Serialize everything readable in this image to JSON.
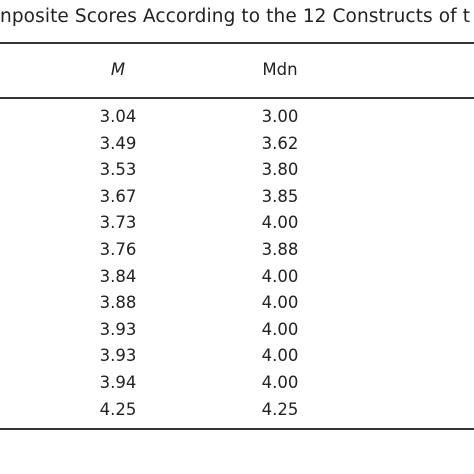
{
  "title": "nposite Scores According to the 12 Constructs of t",
  "table": {
    "header": [
      "M",
      "Mdn"
    ],
    "rows": [
      [
        "3.04",
        "3.00"
      ],
      [
        "3.49",
        "3.62"
      ],
      [
        "3.53",
        "3.80"
      ],
      [
        "3.67",
        "3.85"
      ],
      [
        "3.73",
        "4.00"
      ],
      [
        "3.76",
        "3.88"
      ],
      [
        "3.84",
        "4.00"
      ],
      [
        "3.88",
        "4.00"
      ],
      [
        "3.93",
        "4.00"
      ],
      [
        "3.93",
        "4.00"
      ],
      [
        "3.94",
        "4.00"
      ],
      [
        "4.25",
        "4.25"
      ]
    ]
  }
}
